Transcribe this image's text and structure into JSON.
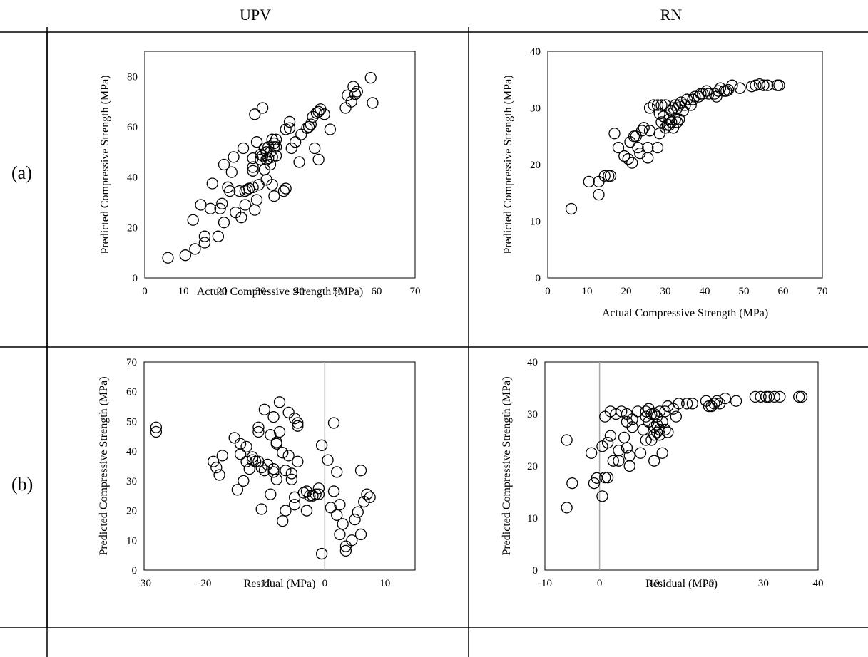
{
  "figure": {
    "columns": [
      "UPV",
      "RN"
    ],
    "rows": [
      "(a)",
      "(b)"
    ]
  },
  "chart_data": [
    {
      "id": "upv-a",
      "type": "scatter",
      "title": "",
      "xlabel": "Actual Compressive Strength (MPa)",
      "ylabel": "Predicted Compressive Strength (MPa)",
      "xlim": [
        0,
        70
      ],
      "ylim": [
        0,
        90
      ],
      "xticks": [
        0,
        10,
        20,
        30,
        40,
        50,
        60,
        70
      ],
      "yticks": [
        0,
        20,
        40,
        60,
        80
      ],
      "vline": null,
      "grid": false,
      "points": [
        [
          6,
          8
        ],
        [
          10.5,
          9
        ],
        [
          13,
          11.5
        ],
        [
          12.5,
          23
        ],
        [
          15.5,
          14
        ],
        [
          15.5,
          16.5
        ],
        [
          14.5,
          29
        ],
        [
          17,
          27.5
        ],
        [
          17.5,
          37.5
        ],
        [
          19,
          16.5
        ],
        [
          20,
          29.5
        ],
        [
          19.5,
          27.5
        ],
        [
          20.5,
          22
        ],
        [
          20.5,
          45
        ],
        [
          21.5,
          36
        ],
        [
          22.5,
          42
        ],
        [
          23,
          48
        ],
        [
          22,
          34.5
        ],
        [
          23.5,
          26
        ],
        [
          24.5,
          34.5
        ],
        [
          25,
          24
        ],
        [
          26,
          29
        ],
        [
          25.5,
          51.5
        ],
        [
          26,
          34.5
        ],
        [
          26.5,
          35
        ],
        [
          27,
          35.5
        ],
        [
          28,
          36
        ],
        [
          28,
          42.5
        ],
        [
          28,
          44
        ],
        [
          28,
          47.5
        ],
        [
          28.5,
          27
        ],
        [
          28.5,
          65
        ],
        [
          29,
          31
        ],
        [
          29.5,
          37
        ],
        [
          29,
          54
        ],
        [
          30,
          49
        ],
        [
          30,
          47
        ],
        [
          30.5,
          48.5
        ],
        [
          30.5,
          67.5
        ],
        [
          31,
          43
        ],
        [
          31,
          51.5
        ],
        [
          31.5,
          47
        ],
        [
          31.5,
          50
        ],
        [
          31.5,
          39
        ],
        [
          32,
          52
        ],
        [
          32,
          47.5
        ],
        [
          32.5,
          50
        ],
        [
          32.5,
          45
        ],
        [
          33,
          55
        ],
        [
          33,
          48
        ],
        [
          33.5,
          52
        ],
        [
          33.5,
          53.5
        ],
        [
          33,
          37
        ],
        [
          33.5,
          32.5
        ],
        [
          34,
          52
        ],
        [
          34,
          55
        ],
        [
          34,
          48.5
        ],
        [
          36,
          34.5
        ],
        [
          36.5,
          35.5
        ],
        [
          36.5,
          59
        ],
        [
          37.5,
          59.5
        ],
        [
          37.5,
          62
        ],
        [
          38,
          51.5
        ],
        [
          39,
          54
        ],
        [
          40,
          46
        ],
        [
          40.5,
          57
        ],
        [
          42,
          59.5
        ],
        [
          42.5,
          60
        ],
        [
          43,
          61
        ],
        [
          43.5,
          64
        ],
        [
          44,
          51.5
        ],
        [
          44.5,
          65.5
        ],
        [
          45,
          47
        ],
        [
          45,
          66
        ],
        [
          45.5,
          67
        ],
        [
          46.5,
          65
        ],
        [
          48,
          59
        ],
        [
          52,
          67.5
        ],
        [
          52.5,
          72.5
        ],
        [
          53.5,
          70
        ],
        [
          54,
          76
        ],
        [
          54.5,
          73
        ],
        [
          55,
          74
        ],
        [
          58.5,
          79.5
        ],
        [
          59,
          69.5
        ]
      ]
    },
    {
      "id": "rn-a",
      "type": "scatter",
      "title": "",
      "xlabel": "Actual Compressive Strength (MPa)",
      "ylabel": "Predicted Compressive Strength (MPa)",
      "xlim": [
        0,
        70
      ],
      "ylim": [
        0,
        40
      ],
      "xticks": [
        0,
        10,
        20,
        30,
        40,
        50,
        60,
        70
      ],
      "yticks": [
        0,
        10,
        20,
        30,
        40
      ],
      "vline": null,
      "grid": false,
      "points": [
        [
          6,
          12.2
        ],
        [
          10.5,
          17
        ],
        [
          13,
          14.7
        ],
        [
          13,
          17
        ],
        [
          14.5,
          18
        ],
        [
          15.5,
          18
        ],
        [
          16,
          18
        ],
        [
          17,
          25.5
        ],
        [
          18,
          23
        ],
        [
          19.5,
          21.5
        ],
        [
          20.5,
          21
        ],
        [
          21,
          24
        ],
        [
          21.5,
          20.3
        ],
        [
          22,
          25
        ],
        [
          22.5,
          25
        ],
        [
          23,
          23
        ],
        [
          23.5,
          22
        ],
        [
          24.5,
          26.5
        ],
        [
          24,
          26
        ],
        [
          25.5,
          21.2
        ],
        [
          25.5,
          23
        ],
        [
          26,
          26
        ],
        [
          26,
          30
        ],
        [
          27,
          30.5
        ],
        [
          28,
          23
        ],
        [
          28,
          30.5
        ],
        [
          28.5,
          25.5
        ],
        [
          28.5,
          29
        ],
        [
          29,
          30.5
        ],
        [
          29,
          27.5
        ],
        [
          29.5,
          28.5
        ],
        [
          30,
          26.5
        ],
        [
          30,
          30.5
        ],
        [
          30.5,
          27
        ],
        [
          31,
          27
        ],
        [
          31,
          28
        ],
        [
          31.5,
          27.5
        ],
        [
          31.5,
          29.5
        ],
        [
          32,
          30
        ],
        [
          32,
          26.5
        ],
        [
          32.5,
          28
        ],
        [
          32.5,
          30.5
        ],
        [
          33,
          30
        ],
        [
          33,
          27.5
        ],
        [
          33.5,
          28
        ],
        [
          33.5,
          30.5
        ],
        [
          34,
          31
        ],
        [
          34.5,
          29.5
        ],
        [
          35,
          30.5
        ],
        [
          35.5,
          31.5
        ],
        [
          36.5,
          30.5
        ],
        [
          37,
          31.5
        ],
        [
          37.5,
          32
        ],
        [
          38.5,
          32
        ],
        [
          39,
          32.5
        ],
        [
          39.5,
          32.5
        ],
        [
          40.5,
          33
        ],
        [
          41,
          32.5
        ],
        [
          42.5,
          32.5
        ],
        [
          43,
          32
        ],
        [
          43.5,
          33
        ],
        [
          44,
          33.5
        ],
        [
          45,
          33
        ],
        [
          45.5,
          33
        ],
        [
          46,
          33.2
        ],
        [
          47,
          34
        ],
        [
          49,
          33.5
        ],
        [
          52,
          33.8
        ],
        [
          53,
          34
        ],
        [
          54,
          34.2
        ],
        [
          55,
          34
        ],
        [
          56,
          34
        ],
        [
          58.5,
          34
        ],
        [
          59,
          34
        ]
      ]
    },
    {
      "id": "upv-b",
      "type": "scatter",
      "title": "",
      "xlabel": "Residual (MPa)",
      "ylabel": "Predicted Compressive Strength (MPa)",
      "xlim": [
        -30,
        15
      ],
      "ylim": [
        0,
        70
      ],
      "xticks": [
        -30,
        -20,
        -10,
        0,
        10
      ],
      "yticks": [
        0,
        10,
        20,
        30,
        40,
        50,
        60,
        70
      ],
      "vline": 0,
      "grid": false,
      "points": [
        [
          -28,
          48
        ],
        [
          -28,
          46.5
        ],
        [
          -18.5,
          36.5
        ],
        [
          -18,
          34.5
        ],
        [
          -17.5,
          32
        ],
        [
          -17,
          38.5
        ],
        [
          -15,
          44.5
        ],
        [
          -14.5,
          27
        ],
        [
          -14,
          42.5
        ],
        [
          -14,
          39
        ],
        [
          -13.5,
          30
        ],
        [
          -13,
          36.5
        ],
        [
          -13,
          41.5
        ],
        [
          -12.5,
          34
        ],
        [
          -12,
          38
        ],
        [
          -12,
          37
        ],
        [
          -11.5,
          36.5
        ],
        [
          -11,
          48
        ],
        [
          -11,
          46.5
        ],
        [
          -11,
          36.5
        ],
        [
          -10.5,
          34.5
        ],
        [
          -10.5,
          20.5
        ],
        [
          -10,
          54
        ],
        [
          -10,
          33.5
        ],
        [
          -9.5,
          35.5
        ],
        [
          -9,
          25.5
        ],
        [
          -9,
          45.5
        ],
        [
          -8.5,
          34
        ],
        [
          -8.5,
          51.5
        ],
        [
          -8.5,
          33
        ],
        [
          -8,
          30.5
        ],
        [
          -8,
          43
        ],
        [
          -8,
          42.5
        ],
        [
          -7.5,
          46.5
        ],
        [
          -7.5,
          56.5
        ],
        [
          -7,
          39.5
        ],
        [
          -7,
          16.5
        ],
        [
          -6.5,
          33.5
        ],
        [
          -6.5,
          20
        ],
        [
          -6,
          53
        ],
        [
          -6,
          38.5
        ],
        [
          -5.5,
          30.5
        ],
        [
          -5.5,
          32.5
        ],
        [
          -5,
          24.5
        ],
        [
          -5,
          22
        ],
        [
          -5,
          51
        ],
        [
          -4.5,
          49.5
        ],
        [
          -4.5,
          36.5
        ],
        [
          -4.5,
          48.5
        ],
        [
          -3.5,
          26
        ],
        [
          -3,
          20
        ],
        [
          -3,
          26.5
        ],
        [
          -2.5,
          25
        ],
        [
          -2,
          25
        ],
        [
          -1.5,
          25.5
        ],
        [
          -1,
          27.5
        ],
        [
          -1,
          25.5
        ],
        [
          -0.5,
          42
        ],
        [
          -0.5,
          5.5
        ],
        [
          0.5,
          37
        ],
        [
          1,
          21
        ],
        [
          1.5,
          26.5
        ],
        [
          1.5,
          49.5
        ],
        [
          2,
          18.5
        ],
        [
          2,
          33
        ],
        [
          2.5,
          12
        ],
        [
          2.5,
          22
        ],
        [
          3,
          15.5
        ],
        [
          3.5,
          6.5
        ],
        [
          3.5,
          8
        ],
        [
          4.5,
          10
        ],
        [
          5,
          17
        ],
        [
          5.5,
          19.5
        ],
        [
          6,
          33.5
        ],
        [
          6,
          12
        ],
        [
          6.5,
          23
        ],
        [
          7,
          25.5
        ],
        [
          7.5,
          24.5
        ]
      ]
    },
    {
      "id": "rn-b",
      "type": "scatter",
      "title": "",
      "xlabel": "Residual (MPa)",
      "ylabel": "Predicted Compressive Strength (MPa)",
      "xlim": [
        -10,
        40
      ],
      "ylim": [
        0,
        40
      ],
      "xticks": [
        -10,
        0,
        10,
        20,
        30,
        40
      ],
      "yticks": [
        0,
        10,
        20,
        30,
        40
      ],
      "vline": 0,
      "grid": false,
      "points": [
        [
          -6,
          12
        ],
        [
          -6,
          25
        ],
        [
          -5,
          16.7
        ],
        [
          -1.5,
          22.5
        ],
        [
          -1,
          16.7
        ],
        [
          -0.5,
          17.7
        ],
        [
          0.5,
          14.2
        ],
        [
          0.5,
          23.8
        ],
        [
          1,
          17.8
        ],
        [
          1,
          29.5
        ],
        [
          1.5,
          17.8
        ],
        [
          1.5,
          24.5
        ],
        [
          2,
          30.5
        ],
        [
          2,
          25.8
        ],
        [
          2.5,
          21
        ],
        [
          3,
          30
        ],
        [
          3.5,
          23
        ],
        [
          3.5,
          21
        ],
        [
          4,
          30.5
        ],
        [
          4.5,
          25.5
        ],
        [
          5,
          23.5
        ],
        [
          5,
          30
        ],
        [
          5,
          28.5
        ],
        [
          5.5,
          22
        ],
        [
          5.5,
          20
        ],
        [
          6,
          29
        ],
        [
          6,
          27.5
        ],
        [
          7,
          30.5
        ],
        [
          7.5,
          22.5
        ],
        [
          8,
          27
        ],
        [
          8.5,
          29.5
        ],
        [
          8.5,
          30.5
        ],
        [
          8.5,
          25
        ],
        [
          9,
          28.5
        ],
        [
          9,
          31
        ],
        [
          9.5,
          25
        ],
        [
          9.5,
          30
        ],
        [
          10,
          26
        ],
        [
          10,
          27.5
        ],
        [
          10,
          21
        ],
        [
          10,
          30
        ],
        [
          10.5,
          29.5
        ],
        [
          10.5,
          26.5
        ],
        [
          10.5,
          28
        ],
        [
          11,
          26
        ],
        [
          11,
          27
        ],
        [
          11,
          30.5
        ],
        [
          11.5,
          22.5
        ],
        [
          11.5,
          28.5
        ],
        [
          12,
          27
        ],
        [
          12,
          30.5
        ],
        [
          12.5,
          31.5
        ],
        [
          12.5,
          26.5
        ],
        [
          13.5,
          31
        ],
        [
          14,
          29.5
        ],
        [
          14.5,
          32
        ],
        [
          16,
          32
        ],
        [
          17,
          32
        ],
        [
          19.5,
          32.5
        ],
        [
          20,
          31.5
        ],
        [
          20.5,
          31.5
        ],
        [
          21,
          32
        ],
        [
          21.5,
          32.5
        ],
        [
          22,
          32
        ],
        [
          23,
          33
        ],
        [
          25,
          32.5
        ],
        [
          28.5,
          33.3
        ],
        [
          29.5,
          33.3
        ],
        [
          30.5,
          33.3
        ],
        [
          31,
          33.3
        ],
        [
          32,
          33.3
        ],
        [
          33,
          33.3
        ],
        [
          36.5,
          33.3
        ],
        [
          37,
          33.3
        ]
      ]
    }
  ]
}
